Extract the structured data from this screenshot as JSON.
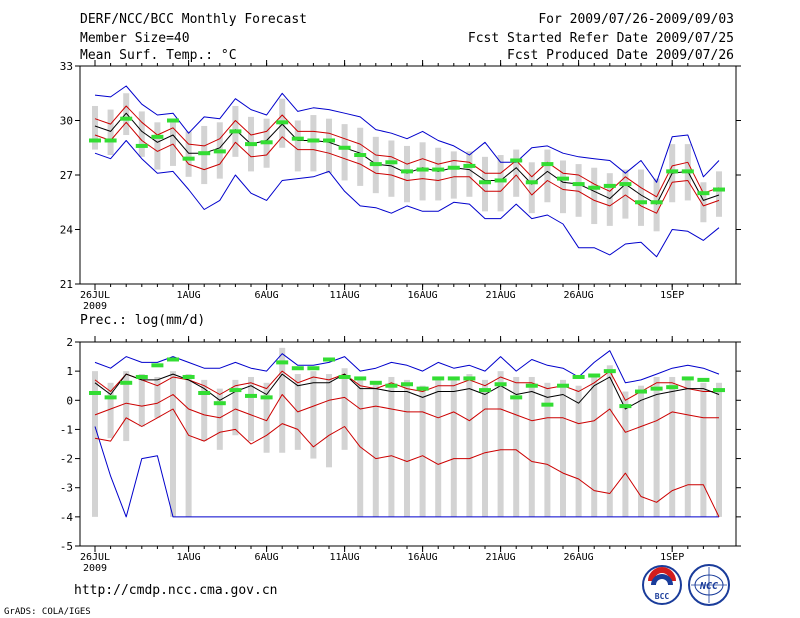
{
  "header": {
    "left": [
      "DERF/NCC/BCC Monthly Forecast",
      "Member Size=40",
      "Mean Surf. Temp.: °C"
    ],
    "right": [
      "For 2009/07/26-2009/09/03",
      "Fcst Started Refer Date 2009/07/25",
      "Fcst Produced Date 2009/07/26"
    ]
  },
  "footer": {
    "url": "http://cmdp.ncc.cma.gov.cn",
    "credit": "GrADS: COLA/IGES",
    "logo_bcc": "BCC",
    "logo_ncc": "NCC"
  },
  "colors": {
    "max_min": "#0000cc",
    "pct": "#cc0000",
    "mean": "#000000",
    "obs": "#33dd33",
    "box": "#d3d3d3"
  },
  "chart_data": [
    {
      "type": "line",
      "title": "Mean Surf. Temp.: °C",
      "ylim": [
        21,
        33
      ],
      "yticks": [
        21,
        24,
        27,
        30,
        33
      ],
      "xlim": [
        0,
        40
      ],
      "xticks": [
        {
          "x": 0,
          "label": "26JUL",
          "sub": "2009"
        },
        {
          "x": 6,
          "label": "1AUG"
        },
        {
          "x": 11,
          "label": "6AUG"
        },
        {
          "x": 16,
          "label": "11AUG"
        },
        {
          "x": 21,
          "label": "16AUG"
        },
        {
          "x": 26,
          "label": "21AUG"
        },
        {
          "x": 31,
          "label": "26AUG"
        },
        {
          "x": 37,
          "label": "1SEP"
        }
      ],
      "series": [
        {
          "name": "max",
          "color": "#0000cc",
          "values": [
            31.4,
            31.3,
            31.9,
            30.9,
            30.3,
            30.4,
            29.3,
            30.2,
            30.1,
            31.2,
            30.6,
            30.3,
            31.5,
            30.5,
            30.7,
            30.6,
            30.4,
            30.2,
            29.5,
            29.3,
            29.0,
            29.4,
            28.9,
            28.6,
            28.1,
            28.8,
            27.7,
            27.7,
            28.5,
            28.6,
            28.2,
            28.0,
            27.9,
            27.8,
            27.1,
            27.8,
            26.6,
            29.1,
            29.2,
            26.9,
            27.8
          ]
        },
        {
          "name": "p75",
          "color": "#cc0000",
          "values": [
            30.1,
            29.8,
            30.8,
            29.9,
            29.2,
            29.6,
            28.7,
            28.6,
            29.0,
            30.0,
            29.2,
            29.4,
            30.3,
            29.4,
            29.4,
            29.3,
            29.0,
            28.7,
            28.1,
            28.0,
            27.6,
            27.9,
            27.6,
            27.8,
            27.7,
            27.1,
            27.1,
            27.8,
            26.9,
            27.7,
            27.1,
            27.0,
            26.5,
            26.1,
            26.9,
            26.3,
            25.8,
            27.5,
            27.7,
            26.0,
            26.3
          ]
        },
        {
          "name": "mean",
          "color": "#000000",
          "values": [
            29.7,
            29.4,
            30.4,
            29.4,
            28.8,
            29.2,
            28.2,
            28.2,
            28.5,
            29.5,
            28.7,
            28.9,
            29.8,
            28.9,
            28.9,
            28.8,
            28.5,
            28.2,
            27.6,
            27.5,
            27.1,
            27.4,
            27.2,
            27.4,
            27.3,
            26.7,
            26.7,
            27.4,
            26.5,
            27.2,
            26.6,
            26.5,
            26.1,
            25.7,
            26.5,
            25.9,
            25.4,
            27.1,
            27.2,
            25.6,
            25.9
          ]
        },
        {
          "name": "p25",
          "color": "#cc0000",
          "values": [
            29.2,
            28.9,
            29.9,
            28.9,
            28.3,
            28.7,
            27.6,
            27.3,
            27.6,
            28.8,
            28.0,
            28.1,
            29.1,
            28.4,
            28.4,
            28.2,
            27.9,
            27.6,
            27.1,
            27.0,
            26.7,
            26.8,
            26.7,
            26.9,
            26.9,
            26.1,
            26.1,
            27.0,
            25.9,
            26.7,
            26.2,
            26.1,
            25.6,
            25.3,
            25.9,
            25.3,
            24.9,
            26.6,
            26.7,
            25.3,
            25.6
          ]
        },
        {
          "name": "min",
          "color": "#0000cc",
          "values": [
            28.2,
            27.9,
            28.9,
            27.9,
            27.1,
            27.2,
            26.2,
            25.1,
            25.6,
            27.0,
            26.0,
            25.6,
            26.7,
            26.8,
            26.9,
            27.2,
            26.1,
            25.3,
            25.2,
            24.9,
            25.3,
            25.0,
            25.0,
            25.5,
            25.4,
            24.6,
            24.6,
            25.4,
            24.6,
            24.8,
            24.3,
            23.0,
            23.0,
            22.6,
            23.2,
            23.3,
            22.5,
            24.0,
            23.9,
            23.4,
            24.1
          ]
        },
        {
          "name": "box_low",
          "color": "#d3d3d3",
          "values": [
            28.4,
            28.1,
            29.2,
            28.0,
            27.3,
            27.5,
            26.9,
            26.5,
            26.8,
            28.0,
            27.2,
            27.4,
            28.5,
            27.2,
            27.2,
            27.1,
            26.7,
            26.4,
            26.0,
            25.8,
            25.5,
            25.6,
            25.6,
            25.7,
            25.8,
            25.0,
            25.0,
            25.8,
            24.9,
            25.5,
            24.9,
            24.7,
            24.3,
            24.2,
            24.6,
            24.2,
            23.9,
            25.5,
            25.6,
            24.4,
            24.7
          ]
        },
        {
          "name": "box_high",
          "color": "#d3d3d3",
          "values": [
            30.8,
            30.6,
            31.5,
            30.5,
            29.9,
            30.1,
            29.4,
            29.7,
            29.9,
            30.8,
            30.2,
            30.1,
            31.2,
            30.0,
            30.3,
            30.1,
            29.8,
            29.6,
            29.1,
            28.9,
            28.6,
            28.8,
            28.5,
            28.3,
            28.3,
            28.0,
            28.1,
            28.4,
            27.7,
            28.4,
            27.8,
            27.6,
            27.4,
            27.1,
            27.3,
            27.3,
            26.8,
            28.7,
            28.7,
            26.6,
            27.2
          ]
        },
        {
          "name": "obs",
          "color": "#33dd33",
          "values": [
            28.9,
            28.9,
            30.1,
            28.6,
            29.1,
            30.0,
            27.9,
            28.2,
            28.3,
            29.4,
            28.7,
            28.8,
            29.9,
            29.0,
            28.9,
            28.9,
            28.5,
            28.1,
            27.6,
            27.7,
            27.2,
            27.3,
            27.3,
            27.4,
            27.5,
            26.6,
            26.7,
            27.8,
            26.6,
            27.6,
            26.8,
            26.5,
            26.3,
            26.4,
            26.5,
            25.5,
            25.5,
            27.2,
            27.2,
            26.0,
            26.2
          ]
        }
      ]
    },
    {
      "type": "line",
      "title": "Prec.: log(mm/d)",
      "ylim": [
        -5,
        2
      ],
      "yticks": [
        -5,
        -4,
        -3,
        -2,
        -1,
        0,
        1,
        2
      ],
      "xlim": [
        0,
        40
      ],
      "xticks": [
        {
          "x": 0,
          "label": "26JUL",
          "sub": "2009"
        },
        {
          "x": 6,
          "label": "1AUG"
        },
        {
          "x": 11,
          "label": "6AUG"
        },
        {
          "x": 16,
          "label": "11AUG"
        },
        {
          "x": 21,
          "label": "16AUG"
        },
        {
          "x": 26,
          "label": "21AUG"
        },
        {
          "x": 31,
          "label": "26AUG"
        },
        {
          "x": 37,
          "label": "1SEP"
        }
      ],
      "series": [
        {
          "name": "max",
          "color": "#0000cc",
          "values": [
            1.3,
            1.1,
            1.5,
            1.3,
            1.3,
            1.5,
            1.3,
            1.1,
            1.1,
            1.3,
            1.1,
            1.0,
            1.6,
            1.2,
            1.2,
            1.3,
            1.5,
            1.0,
            1.1,
            1.3,
            1.2,
            1.0,
            1.3,
            1.1,
            1.2,
            1.0,
            1.5,
            1.0,
            1.4,
            1.2,
            1.1,
            0.8,
            1.3,
            1.7,
            0.6,
            0.7,
            0.9,
            1.1,
            1.2,
            1.1,
            0.9
          ]
        },
        {
          "name": "p75",
          "color": "#cc0000",
          "values": [
            0.7,
            0.3,
            0.9,
            0.7,
            0.5,
            0.8,
            0.7,
            0.5,
            0.2,
            0.5,
            0.6,
            0.4,
            1.0,
            0.6,
            0.8,
            0.7,
            0.9,
            0.5,
            0.4,
            0.6,
            0.4,
            0.3,
            0.5,
            0.5,
            0.7,
            0.5,
            0.8,
            0.6,
            0.6,
            0.4,
            0.5,
            0.3,
            0.6,
            1.0,
            0.0,
            0.3,
            0.6,
            0.6,
            0.4,
            0.3,
            0.3
          ]
        },
        {
          "name": "mean",
          "color": "#000000",
          "values": [
            0.6,
            0.2,
            0.9,
            0.7,
            0.7,
            0.9,
            0.7,
            0.4,
            0.0,
            0.3,
            0.5,
            0.2,
            0.9,
            0.5,
            0.6,
            0.6,
            0.9,
            0.4,
            0.4,
            0.3,
            0.3,
            0.1,
            0.3,
            0.3,
            0.4,
            0.2,
            0.5,
            0.2,
            0.3,
            0.1,
            0.2,
            -0.1,
            0.5,
            0.8,
            -0.3,
            0.0,
            0.2,
            0.3,
            0.4,
            0.4,
            0.2
          ]
        },
        {
          "name": "p25",
          "color": "#cc0000",
          "values": [
            -0.5,
            -0.3,
            -0.1,
            -0.2,
            -0.1,
            0.2,
            -0.3,
            -0.5,
            -0.6,
            -0.3,
            -0.5,
            -0.7,
            0.2,
            -0.4,
            -0.2,
            0.0,
            0.1,
            -0.3,
            -0.2,
            -0.3,
            -0.4,
            -0.4,
            -0.6,
            -0.4,
            -0.7,
            -0.3,
            -0.3,
            -0.5,
            -0.7,
            -0.6,
            -0.6,
            -0.8,
            -0.7,
            -0.3,
            -1.1,
            -0.9,
            -0.7,
            -0.4,
            -0.5,
            -0.6,
            -0.6
          ]
        },
        {
          "name": "p10",
          "color": "#cc0000",
          "values": [
            -1.3,
            -1.4,
            -0.6,
            -0.9,
            -0.6,
            -0.3,
            -1.2,
            -1.4,
            -1.1,
            -1.0,
            -1.5,
            -1.2,
            -0.8,
            -1.0,
            -1.6,
            -1.2,
            -0.9,
            -1.6,
            -2.0,
            -1.9,
            -2.1,
            -1.9,
            -2.2,
            -2.0,
            -2.0,
            -1.8,
            -1.7,
            -1.7,
            -2.1,
            -2.2,
            -2.5,
            -2.7,
            -3.1,
            -3.2,
            -2.5,
            -3.3,
            -3.5,
            -3.1,
            -2.9,
            -2.9,
            -4.0
          ]
        },
        {
          "name": "min",
          "color": "#0000cc",
          "values": [
            -0.9,
            -2.6,
            -4.0,
            -2.0,
            -1.9,
            -4.0,
            -4.0,
            -4.0,
            -4.0,
            -4.0,
            -4.0,
            -4.0,
            -4.0,
            -4.0,
            -4.0,
            -4.0,
            -4.0,
            -4.0,
            -4.0,
            -4.0,
            -4.0,
            -4.0,
            -4.0,
            -4.0,
            -4.0,
            -4.0,
            -4.0,
            -4.0,
            -4.0,
            -4.0,
            -4.0,
            -4.0,
            -4.0,
            -4.0,
            -4.0,
            -4.0,
            -4.0,
            -4.0,
            -4.0,
            -4.0,
            -4.0
          ]
        },
        {
          "name": "box_low",
          "color": "#d3d3d3",
          "values": [
            -4.0,
            -1.3,
            -1.4,
            -0.9,
            -0.6,
            -4.0,
            -4.0,
            -1.4,
            -1.7,
            -1.2,
            -1.4,
            -1.8,
            -1.8,
            -1.7,
            -2.0,
            -2.3,
            -1.7,
            -4.0,
            -4.0,
            -4.0,
            -4.0,
            -4.0,
            -4.0,
            -4.0,
            -4.0,
            -4.0,
            -4.0,
            -4.0,
            -4.0,
            -4.0,
            -4.0,
            -4.0,
            -4.0,
            -4.0,
            -4.0,
            -4.0,
            -4.0,
            -4.0,
            -4.0,
            -4.0,
            -4.0
          ]
        },
        {
          "name": "box_high",
          "color": "#d3d3d3",
          "values": [
            1.0,
            0.6,
            1.0,
            0.9,
            0.8,
            1.0,
            0.9,
            0.7,
            0.4,
            0.7,
            0.8,
            0.6,
            1.8,
            0.9,
            1.0,
            0.9,
            1.1,
            0.8,
            0.6,
            0.8,
            0.7,
            0.5,
            0.8,
            0.7,
            0.9,
            0.7,
            1.0,
            0.8,
            0.8,
            0.6,
            0.7,
            0.5,
            0.9,
            1.2,
            0.3,
            0.5,
            0.8,
            0.8,
            0.7,
            0.6,
            0.6
          ]
        },
        {
          "name": "obs",
          "color": "#33dd33",
          "values": [
            0.25,
            0.1,
            0.6,
            0.8,
            1.2,
            1.4,
            0.8,
            0.25,
            -0.1,
            0.35,
            0.15,
            0.1,
            1.3,
            1.1,
            1.1,
            1.4,
            0.8,
            0.75,
            0.6,
            0.5,
            0.55,
            0.4,
            0.75,
            0.75,
            0.75,
            0.35,
            0.55,
            0.1,
            0.5,
            -0.15,
            0.5,
            0.8,
            0.85,
            1.0,
            -0.2,
            0.3,
            0.4,
            0.45,
            0.75,
            0.7,
            0.35
          ]
        }
      ]
    }
  ]
}
